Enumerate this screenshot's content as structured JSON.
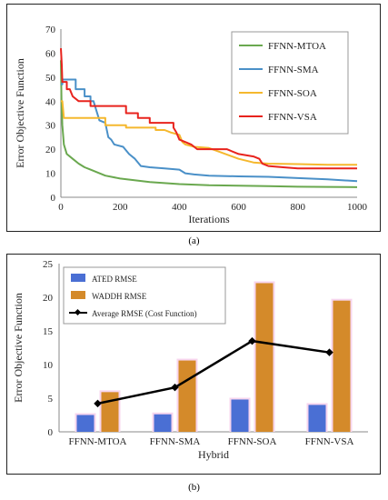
{
  "captions": {
    "a": "(a)",
    "b": "(b)"
  },
  "chart_data": [
    {
      "type": "line",
      "xlabel": "Iterations",
      "ylabel": "Error Objective Function",
      "xlim": [
        0,
        1000
      ],
      "ylim": [
        0,
        70
      ],
      "xticks": [
        0,
        200,
        400,
        600,
        800,
        1000
      ],
      "yticks": [
        0,
        10,
        20,
        30,
        40,
        50,
        60,
        70
      ],
      "legend_position": "top-right",
      "series": [
        {
          "name": "FFNN-MTOA",
          "color": "#6aa84f",
          "points": [
            [
              0,
              57
            ],
            [
              2,
              40
            ],
            [
              5,
              30
            ],
            [
              10,
              22
            ],
            [
              20,
              18
            ],
            [
              40,
              16
            ],
            [
              60,
              14
            ],
            [
              80,
              12.5
            ],
            [
              100,
              11.5
            ],
            [
              150,
              9
            ],
            [
              200,
              7.8
            ],
            [
              300,
              6.3
            ],
            [
              400,
              5.5
            ],
            [
              500,
              5
            ],
            [
              600,
              4.8
            ],
            [
              700,
              4.6
            ],
            [
              800,
              4.4
            ],
            [
              900,
              4.3
            ],
            [
              1000,
              4.2
            ]
          ]
        },
        {
          "name": "FFNN-SMA",
          "color": "#4a90c8",
          "points": [
            [
              0,
              47
            ],
            [
              5,
              47
            ],
            [
              5,
              49
            ],
            [
              50,
              49
            ],
            [
              50,
              45
            ],
            [
              80,
              45
            ],
            [
              80,
              42
            ],
            [
              100,
              42
            ],
            [
              100,
              40
            ],
            [
              110,
              40
            ],
            [
              130,
              32
            ],
            [
              150,
              31
            ],
            [
              160,
              25
            ],
            [
              170,
              24
            ],
            [
              180,
              22
            ],
            [
              210,
              21
            ],
            [
              230,
              18
            ],
            [
              250,
              16
            ],
            [
              270,
              13
            ],
            [
              300,
              12.5
            ],
            [
              350,
              12
            ],
            [
              400,
              11.5
            ],
            [
              420,
              10
            ],
            [
              450,
              9.5
            ],
            [
              500,
              9
            ],
            [
              600,
              8.7
            ],
            [
              700,
              8.5
            ],
            [
              800,
              8
            ],
            [
              900,
              7.5
            ],
            [
              1000,
              6.7
            ]
          ]
        },
        {
          "name": "FFNN-SOA",
          "color": "#f5b82e",
          "points": [
            [
              0,
              40
            ],
            [
              5,
              40
            ],
            [
              10,
              33
            ],
            [
              150,
              33
            ],
            [
              150,
              30
            ],
            [
              220,
              30
            ],
            [
              220,
              29
            ],
            [
              320,
              29
            ],
            [
              320,
              28
            ],
            [
              350,
              28
            ],
            [
              370,
              27
            ],
            [
              400,
              26
            ],
            [
              410,
              23
            ],
            [
              420,
              22
            ],
            [
              450,
              21
            ],
            [
              500,
              20.5
            ],
            [
              600,
              16
            ],
            [
              650,
              14.5
            ],
            [
              700,
              14
            ],
            [
              800,
              13.8
            ],
            [
              900,
              13.5
            ],
            [
              1000,
              13.5
            ]
          ]
        },
        {
          "name": "FFNN-VSA",
          "color": "#e8231d",
          "points": [
            [
              0,
              62
            ],
            [
              3,
              55
            ],
            [
              5,
              48
            ],
            [
              20,
              48
            ],
            [
              20,
              45
            ],
            [
              30,
              45
            ],
            [
              40,
              42
            ],
            [
              60,
              40
            ],
            [
              100,
              40
            ],
            [
              100,
              38
            ],
            [
              220,
              38
            ],
            [
              220,
              35
            ],
            [
              260,
              35
            ],
            [
              260,
              33
            ],
            [
              300,
              33
            ],
            [
              300,
              31
            ],
            [
              380,
              31
            ],
            [
              380,
              29
            ],
            [
              390,
              27
            ],
            [
              400,
              24
            ],
            [
              420,
              23
            ],
            [
              440,
              22
            ],
            [
              460,
              20
            ],
            [
              560,
              20
            ],
            [
              600,
              18
            ],
            [
              650,
              17
            ],
            [
              670,
              16
            ],
            [
              680,
              14
            ],
            [
              700,
              13
            ],
            [
              750,
              12.5
            ],
            [
              800,
              12
            ],
            [
              900,
              12
            ],
            [
              1000,
              12
            ]
          ]
        }
      ]
    },
    {
      "type": "bar",
      "xlabel": "Hybrid",
      "ylabel": "Error Objective Function",
      "ylim": [
        0,
        25
      ],
      "yticks": [
        0,
        5,
        10,
        15,
        20,
        25
      ],
      "categories": [
        "FFNN-MTOA",
        "FFNN-SMA",
        "FFNN-SOA",
        "FFNN-VSA"
      ],
      "legend_position": "top-left",
      "series": [
        {
          "name": "ATED RMSE",
          "kind": "bar",
          "color": "#4a6fd4",
          "values": [
            2.5,
            2.6,
            4.8,
            4.0
          ]
        },
        {
          "name": "WADDH RMSE",
          "kind": "bar",
          "color": "#d48a2a",
          "values": [
            5.9,
            10.6,
            22.1,
            19.5
          ]
        },
        {
          "name": "Average RMSE (Cost Function)",
          "kind": "line",
          "color": "#000000",
          "values": [
            4.2,
            6.6,
            13.5,
            11.8
          ]
        }
      ]
    }
  ]
}
